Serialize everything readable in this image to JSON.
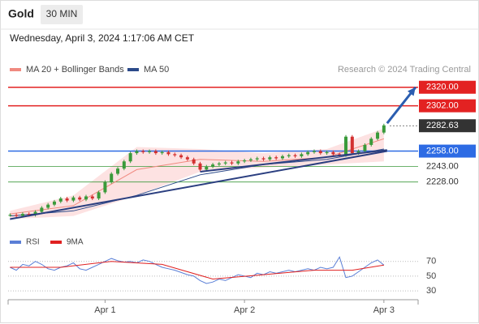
{
  "header": {
    "title": "Gold",
    "timeframe": "30 MIN",
    "datetime": "Wednesday, April 3, 2024 1:17:06 AM CET",
    "legend": [
      {
        "name": "MA 20 + Bollinger Bands",
        "color": "#f08a80"
      },
      {
        "name": "MA 50",
        "color": "#2b4a8a"
      }
    ],
    "source": "Research © 2024 Trading Central"
  },
  "chart_data": {
    "type": "candlestick",
    "xlim": [
      -0.3,
      64.4
    ],
    "ylim": [
      2190,
      2330
    ],
    "xticks": [
      {
        "value": 15,
        "label": "Apr 1"
      },
      {
        "value": 37,
        "label": "Apr 2"
      },
      {
        "value": 59,
        "label": "Apr 3"
      }
    ],
    "up_color": "#3a9a3a",
    "down_color": "#d33030",
    "close": [
      2196,
      2195,
      2197,
      2196,
      2199,
      2203,
      2206,
      2209,
      2212,
      2210,
      2213,
      2211,
      2214,
      2212,
      2218,
      2228,
      2236,
      2241,
      2248,
      2256,
      2258,
      2257,
      2258,
      2256,
      2257,
      2255,
      2254,
      2252,
      2250,
      2246,
      2240,
      2243,
      2245,
      2246,
      2247,
      2246,
      2248,
      2249,
      2250,
      2251,
      2250,
      2252,
      2251,
      2253,
      2254,
      2253,
      2255,
      2257,
      2258,
      2256,
      2257,
      2255,
      2254,
      2272,
      2256,
      2258,
      2264,
      2270,
      2276,
      2283
    ],
    "band": {
      "x": [
        0,
        10,
        20,
        30,
        40,
        50,
        59
      ],
      "upper": [
        2200,
        2215,
        2262,
        2260,
        2256,
        2260,
        2280
      ],
      "lower": [
        2192,
        2195,
        2215,
        2238,
        2242,
        2245,
        2248
      ],
      "color": "#fde2e2"
    },
    "lines": [
      {
        "name": "MA 20",
        "color": "#f08a80",
        "x": [
          0,
          10,
          20,
          30,
          40,
          50,
          59
        ],
        "values": [
          2197,
          2205,
          2240,
          2250,
          2248,
          2252,
          2270
        ]
      },
      {
        "name": "MA 50",
        "color": "#2b4a8a",
        "x": [
          0,
          10,
          20,
          30,
          40,
          50,
          59
        ],
        "values": [
          2195,
          2200,
          2215,
          2235,
          2245,
          2250,
          2260
        ]
      }
    ],
    "trendlines": [
      {
        "color": "#2b3f80",
        "x": [
          0,
          59.5
        ],
        "values": [
          2192,
          2258
        ]
      },
      {
        "color": "#2b3f80",
        "x": [
          30,
          59.5
        ],
        "values": [
          2238,
          2259
        ]
      }
    ],
    "arrow": {
      "color": "#2a5db0",
      "x": [
        59.5,
        64
      ],
      "values": [
        2285,
        2320
      ]
    },
    "levels": [
      {
        "value": 2320,
        "label": "2320.00",
        "color": "#e32222",
        "style": "box",
        "line": "solid"
      },
      {
        "value": 2302,
        "label": "2302.00",
        "color": "#e32222",
        "style": "box",
        "line": "solid"
      },
      {
        "value": 2282.63,
        "label": "2282.63",
        "color": "#333333",
        "style": "box",
        "line": "dotted"
      },
      {
        "value": 2258,
        "label": "2258.00",
        "color": "#2d6be4",
        "style": "box",
        "line": "solid"
      },
      {
        "value": 2243,
        "label": "2243.00",
        "color": "#3d9a3d",
        "style": "text",
        "line": "solid"
      },
      {
        "value": 2228,
        "label": "2228.00",
        "color": "#3d9a3d",
        "style": "text",
        "line": "solid"
      }
    ],
    "rsi": {
      "ylim": [
        18,
        84
      ],
      "yticks": [
        70,
        50,
        30
      ],
      "series": [
        {
          "name": "RSI",
          "color": "#5b7fd6",
          "values": [
            62,
            58,
            66,
            64,
            70,
            66,
            60,
            58,
            62,
            64,
            68,
            60,
            58,
            62,
            66,
            70,
            74,
            71,
            69,
            70,
            68,
            72,
            70,
            66,
            62,
            60,
            58,
            55,
            52,
            50,
            44,
            40,
            42,
            46,
            44,
            48,
            52,
            50,
            48,
            54,
            52,
            56,
            54,
            56,
            58,
            56,
            58,
            60,
            58,
            62,
            60,
            62,
            76,
            48,
            50,
            56,
            62,
            68,
            72,
            65
          ]
        },
        {
          "name": "9MA",
          "color": "#e02020",
          "x": [
            0,
            8,
            16,
            24,
            32,
            40,
            48,
            54,
            59
          ],
          "values": [
            62,
            62,
            70,
            66,
            46,
            52,
            58,
            58,
            65
          ]
        }
      ]
    }
  }
}
